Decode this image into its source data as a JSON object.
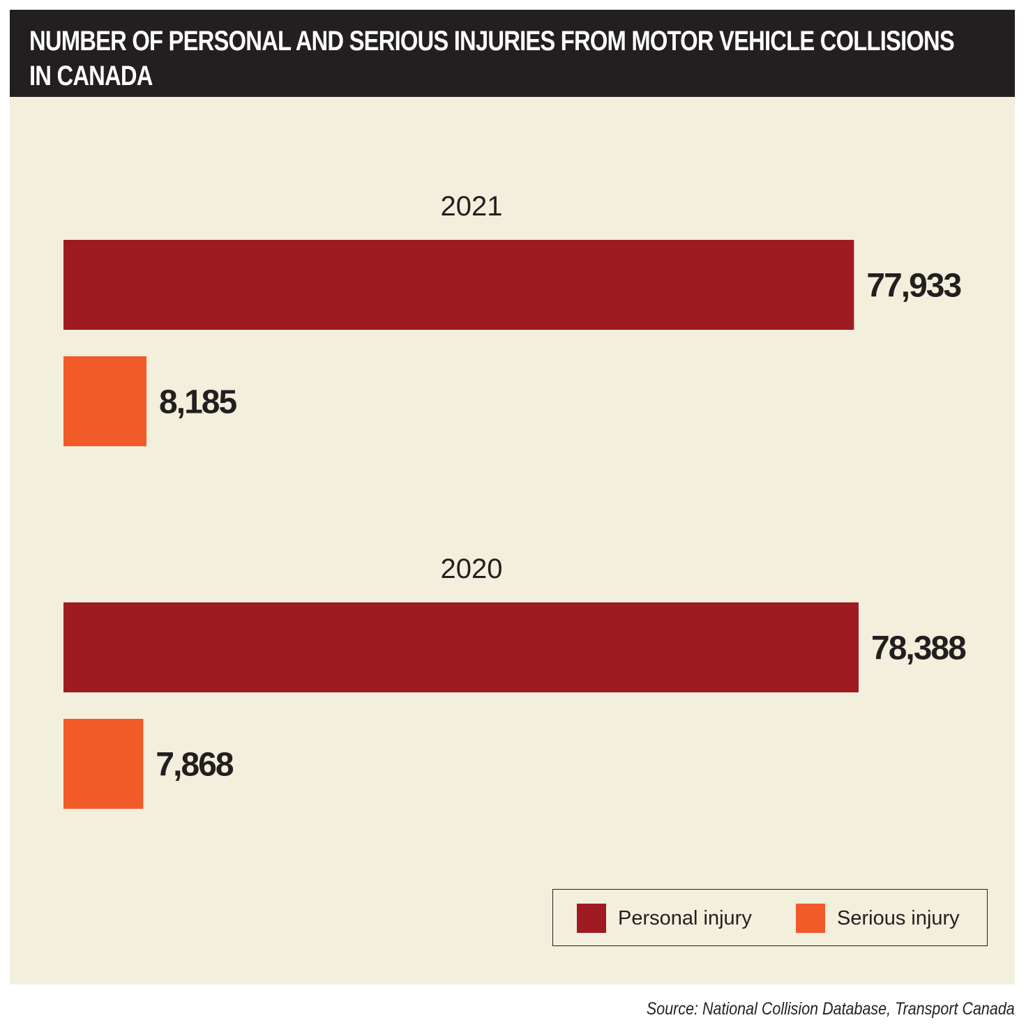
{
  "header": {
    "title": "NUMBER OF PERSONAL AND SERIOUS INJURIES FROM MOTOR VEHICLE COLLISIONS IN CANADA"
  },
  "source": "Source: National Collision Database, Transport Canada",
  "legend": [
    {
      "label": "Personal injury",
      "color": "#9e1b21"
    },
    {
      "label": "Serious injury",
      "color": "#f15a29"
    }
  ],
  "colors": {
    "header_bg": "#231f20",
    "panel_bg": "#f2efdc",
    "personal": "#9e1b21",
    "serious": "#f15a29",
    "text": "#231f20"
  },
  "chart_data": {
    "type": "bar",
    "orientation": "horizontal",
    "title": "NUMBER OF PERSONAL AND SERIOUS INJURIES FROM MOTOR VEHICLE COLLISIONS IN CANADA",
    "categories": [
      "2021",
      "2020"
    ],
    "series": [
      {
        "name": "Personal injury",
        "values": [
          77933,
          78388
        ],
        "labels": [
          "77,933",
          "78,388"
        ]
      },
      {
        "name": "Serious injury",
        "values": [
          8185,
          7868
        ],
        "labels": [
          "8,185",
          "7,868"
        ]
      }
    ],
    "xlim": [
      0,
      78388
    ],
    "grid": false,
    "legend_position": "bottom-right"
  }
}
